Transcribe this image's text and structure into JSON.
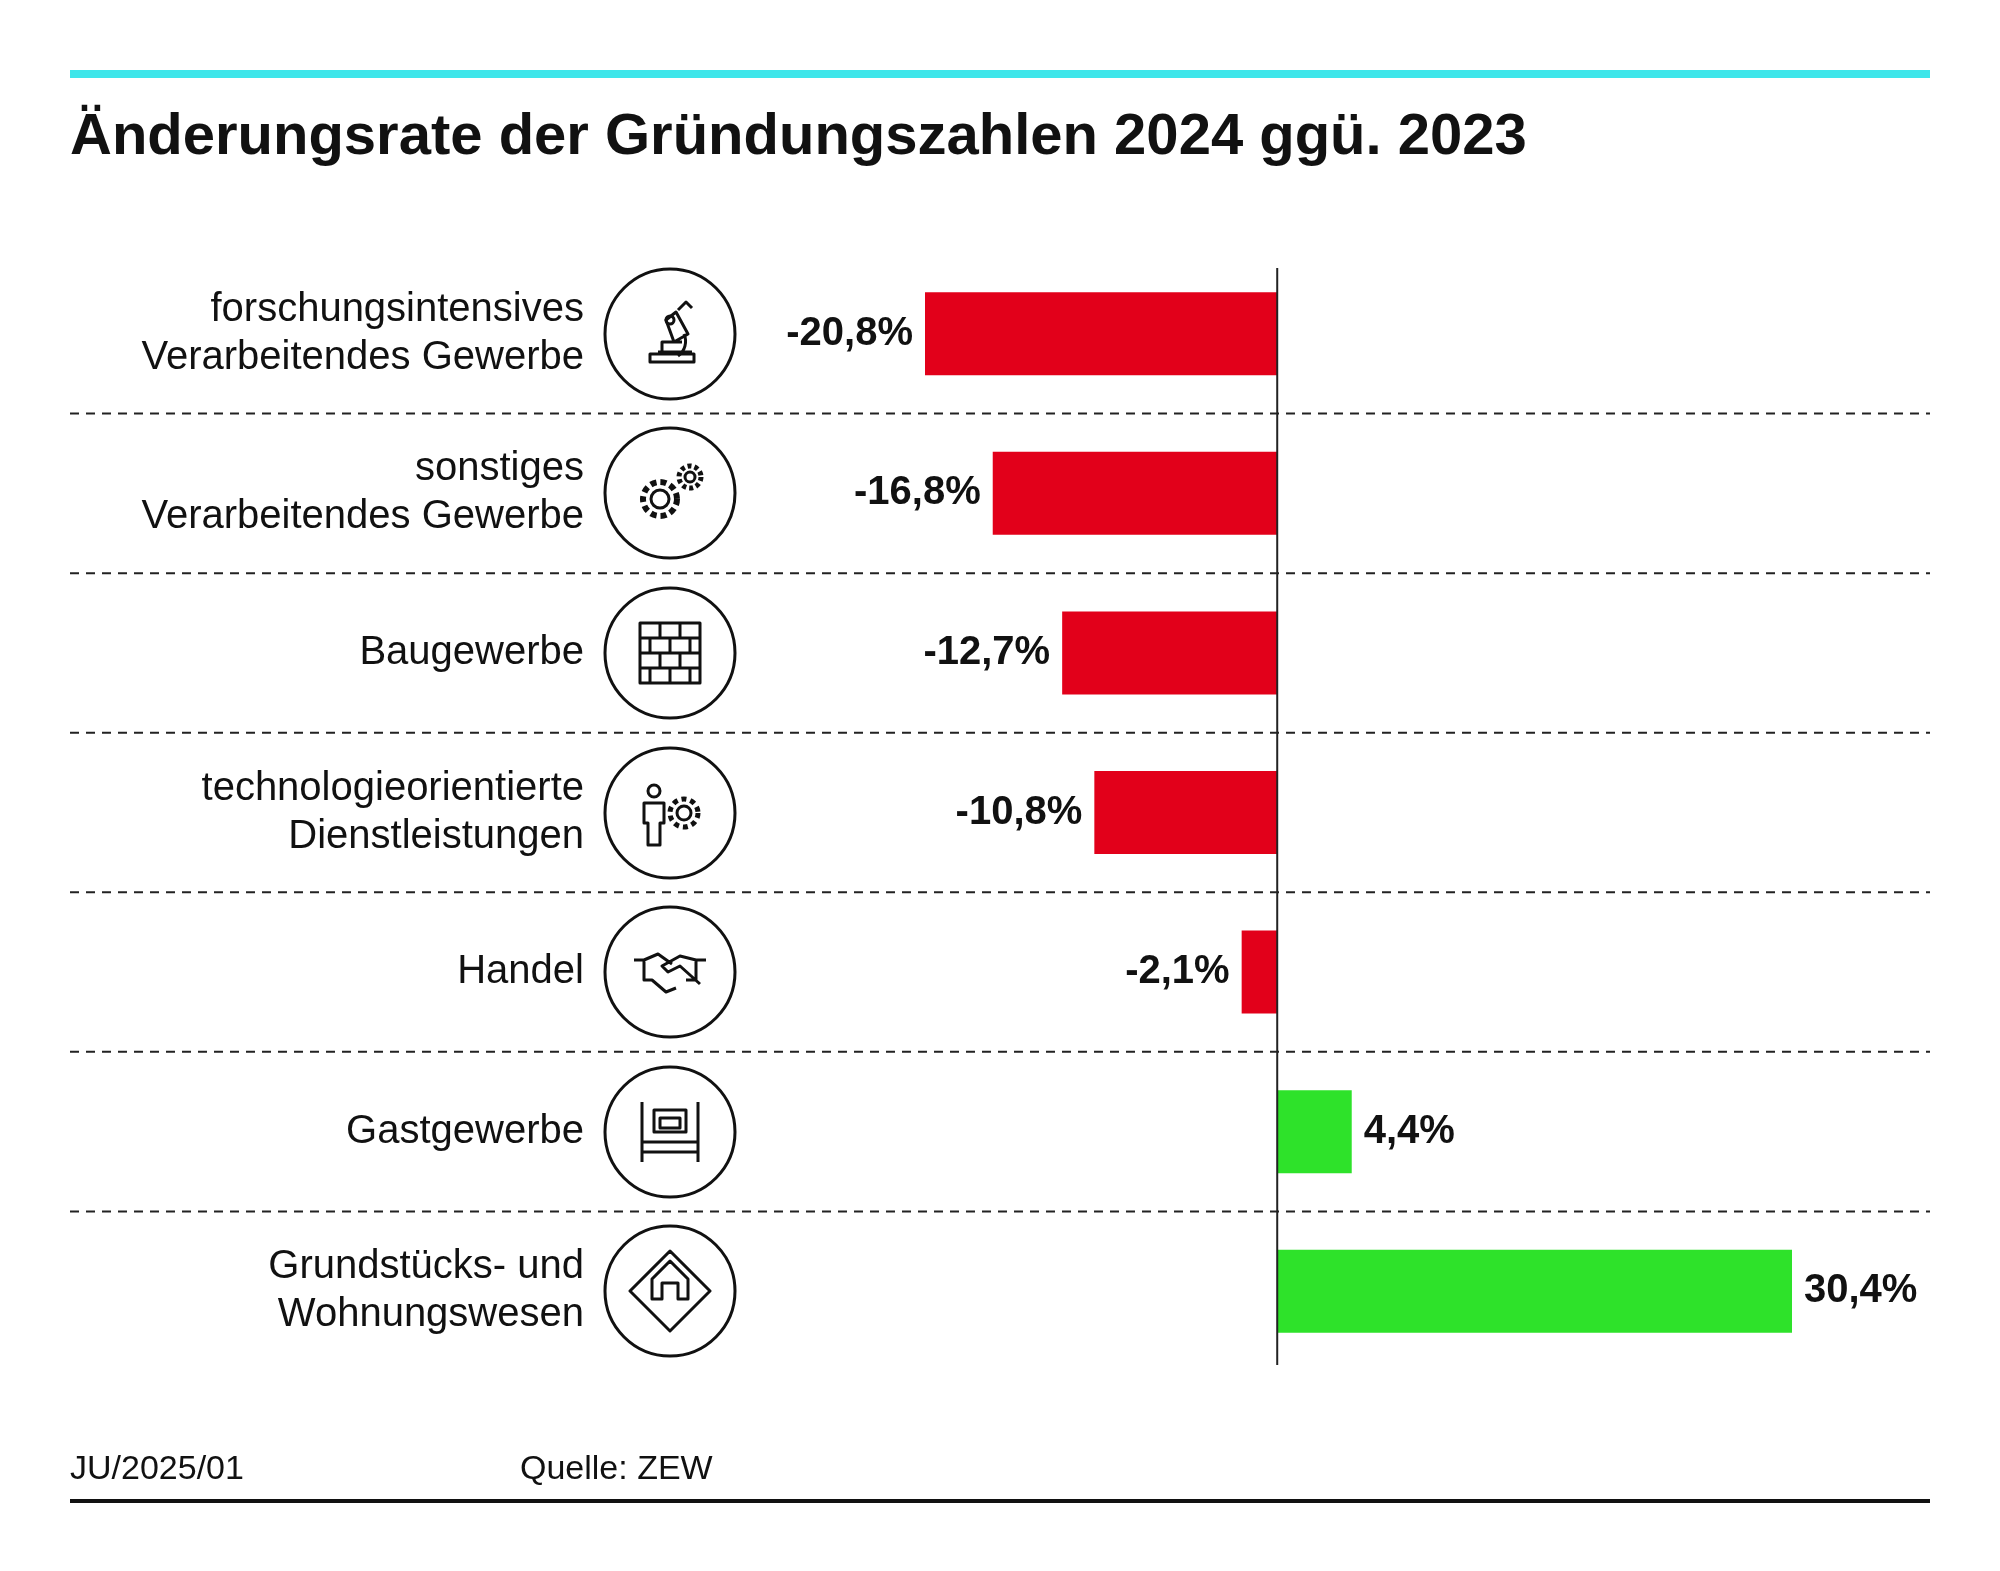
{
  "chart_data": {
    "type": "bar",
    "orientation": "horizontal",
    "title": "Änderungsrate der Gründungszahlen 2024 ggü. 2023",
    "categories": [
      "forschungsintensives Verarbeitendes Gewerbe",
      "sonstiges Verarbeitendes Gewerbe",
      "Baugewerbe",
      "technologieorientierte Dienstleistungen",
      "Handel",
      "Gastgewerbe",
      "Grundstücks- und Wohnungswesen"
    ],
    "values": [
      -20.8,
      -16.8,
      -12.7,
      -10.8,
      -2.1,
      4.4,
      30.4
    ],
    "value_labels": [
      "-20,8%",
      "-16,8%",
      "-12,7%",
      "-10,8%",
      "-2,1%",
      "4,4%",
      "30,4%"
    ],
    "colors": [
      "#e2001a",
      "#e2001a",
      "#e2001a",
      "#e2001a",
      "#e2001a",
      "#2ee22a",
      "#2ee22a"
    ],
    "tick_labels": "y",
    "grid": "y",
    "legend": false,
    "annotations": [
      "JU/2025/01",
      "Quelle: ZEW"
    ]
  }
}
